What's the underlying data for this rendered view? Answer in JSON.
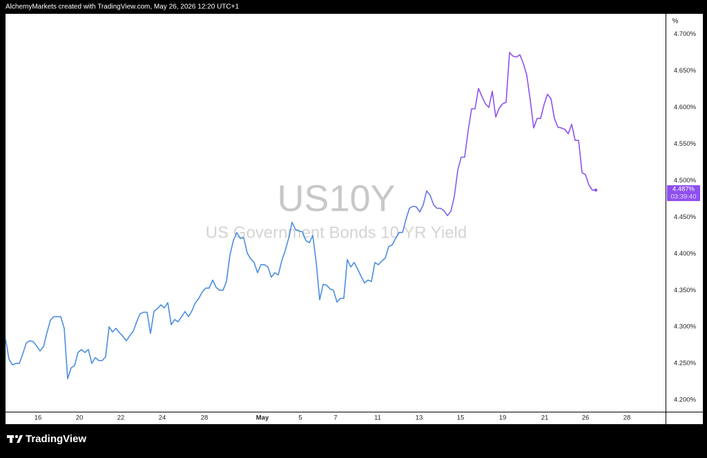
{
  "header": "AlchemyMarkets created with TradingView.com, May 26, 2026 12:20 UTC+1",
  "branding": "TradingView",
  "chart_data": {
    "type": "line",
    "title": "US10Y",
    "subtitle": "US Government Bonds 10 YR Yield",
    "y_unit": "%",
    "colors": [
      "#4a8ee0",
      "#8e4ff0"
    ],
    "grid": false,
    "values": [
      4.284,
      4.256,
      4.248,
      4.25,
      4.25,
      4.263,
      4.278,
      4.281,
      4.28,
      4.274,
      4.267,
      4.273,
      4.292,
      4.309,
      4.314,
      4.314,
      4.314,
      4.298,
      4.229,
      4.244,
      4.247,
      4.265,
      4.269,
      4.265,
      4.269,
      4.25,
      4.258,
      4.254,
      4.254,
      4.259,
      4.3,
      4.293,
      4.298,
      4.292,
      4.287,
      4.281,
      4.288,
      4.294,
      4.307,
      4.318,
      4.32,
      4.32,
      4.291,
      4.321,
      4.325,
      4.33,
      4.326,
      4.333,
      4.303,
      4.31,
      4.307,
      4.314,
      4.321,
      4.314,
      4.322,
      4.333,
      4.339,
      4.348,
      4.353,
      4.353,
      4.364,
      4.354,
      4.35,
      4.35,
      4.362,
      4.398,
      4.418,
      4.429,
      4.421,
      4.422,
      4.401,
      4.393,
      4.388,
      4.374,
      4.385,
      4.385,
      4.382,
      4.368,
      4.374,
      4.371,
      4.39,
      4.404,
      4.421,
      4.443,
      4.433,
      4.431,
      4.43,
      4.418,
      4.415,
      4.425,
      4.388,
      4.337,
      4.358,
      4.357,
      4.352,
      4.35,
      4.334,
      4.339,
      4.339,
      4.392,
      4.382,
      4.388,
      4.379,
      4.369,
      4.36,
      4.364,
      4.362,
      4.388,
      4.385,
      4.39,
      4.394,
      4.41,
      4.412,
      4.421,
      4.429,
      4.429,
      4.447,
      4.462,
      4.465,
      4.464,
      4.457,
      4.467,
      4.486,
      4.48,
      4.467,
      4.462,
      4.462,
      4.459,
      4.452,
      4.458,
      4.478,
      4.514,
      4.532,
      4.532,
      4.568,
      4.598,
      4.598,
      4.626,
      4.615,
      4.605,
      4.6,
      4.622,
      4.587,
      4.599,
      4.605,
      4.607,
      4.675,
      4.67,
      4.669,
      4.672,
      4.66,
      4.644,
      4.61,
      4.572,
      4.585,
      4.585,
      4.604,
      4.618,
      4.612,
      4.585,
      4.573,
      4.572,
      4.57,
      4.564,
      4.577,
      4.555,
      4.555,
      4.511,
      4.508,
      4.494,
      4.487,
      4.487
    ],
    "last_value_label": "4.487%",
    "countdown": "03:39:40",
    "xlim": [
      0,
      191.2
    ],
    "xticks": [
      {
        "value": 9.4,
        "label": "16"
      },
      {
        "value": 21.4,
        "label": "20"
      },
      {
        "value": 33.4,
        "label": "22"
      },
      {
        "value": 45.4,
        "label": "24"
      },
      {
        "value": 57.6,
        "label": "28"
      },
      {
        "value": 74.4,
        "label": "May"
      },
      {
        "value": 85.4,
        "label": "5"
      },
      {
        "value": 95.6,
        "label": "7"
      },
      {
        "value": 107.8,
        "label": "11"
      },
      {
        "value": 119.8,
        "label": "13"
      },
      {
        "value": 131.8,
        "label": "15"
      },
      {
        "value": 144,
        "label": "19"
      },
      {
        "value": 156.2,
        "label": "21"
      },
      {
        "value": 168,
        "label": "26"
      },
      {
        "value": 180,
        "label": "28"
      }
    ],
    "ylim": [
      4.184,
      4.728
    ],
    "yticks": [
      {
        "value": 4.2,
        "label": "4.200%"
      },
      {
        "value": 4.25,
        "label": "4.250%"
      },
      {
        "value": 4.3,
        "label": "4.300%"
      },
      {
        "value": 4.35,
        "label": "4.350%"
      },
      {
        "value": 4.4,
        "label": "4.400%"
      },
      {
        "value": 4.45,
        "label": "4.450%"
      },
      {
        "value": 4.5,
        "label": "4.500%"
      },
      {
        "value": 4.55,
        "label": "4.550%"
      },
      {
        "value": 4.6,
        "label": "4.600%"
      },
      {
        "value": 4.65,
        "label": "4.650%"
      },
      {
        "value": 4.7,
        "label": "4.700%"
      }
    ]
  }
}
